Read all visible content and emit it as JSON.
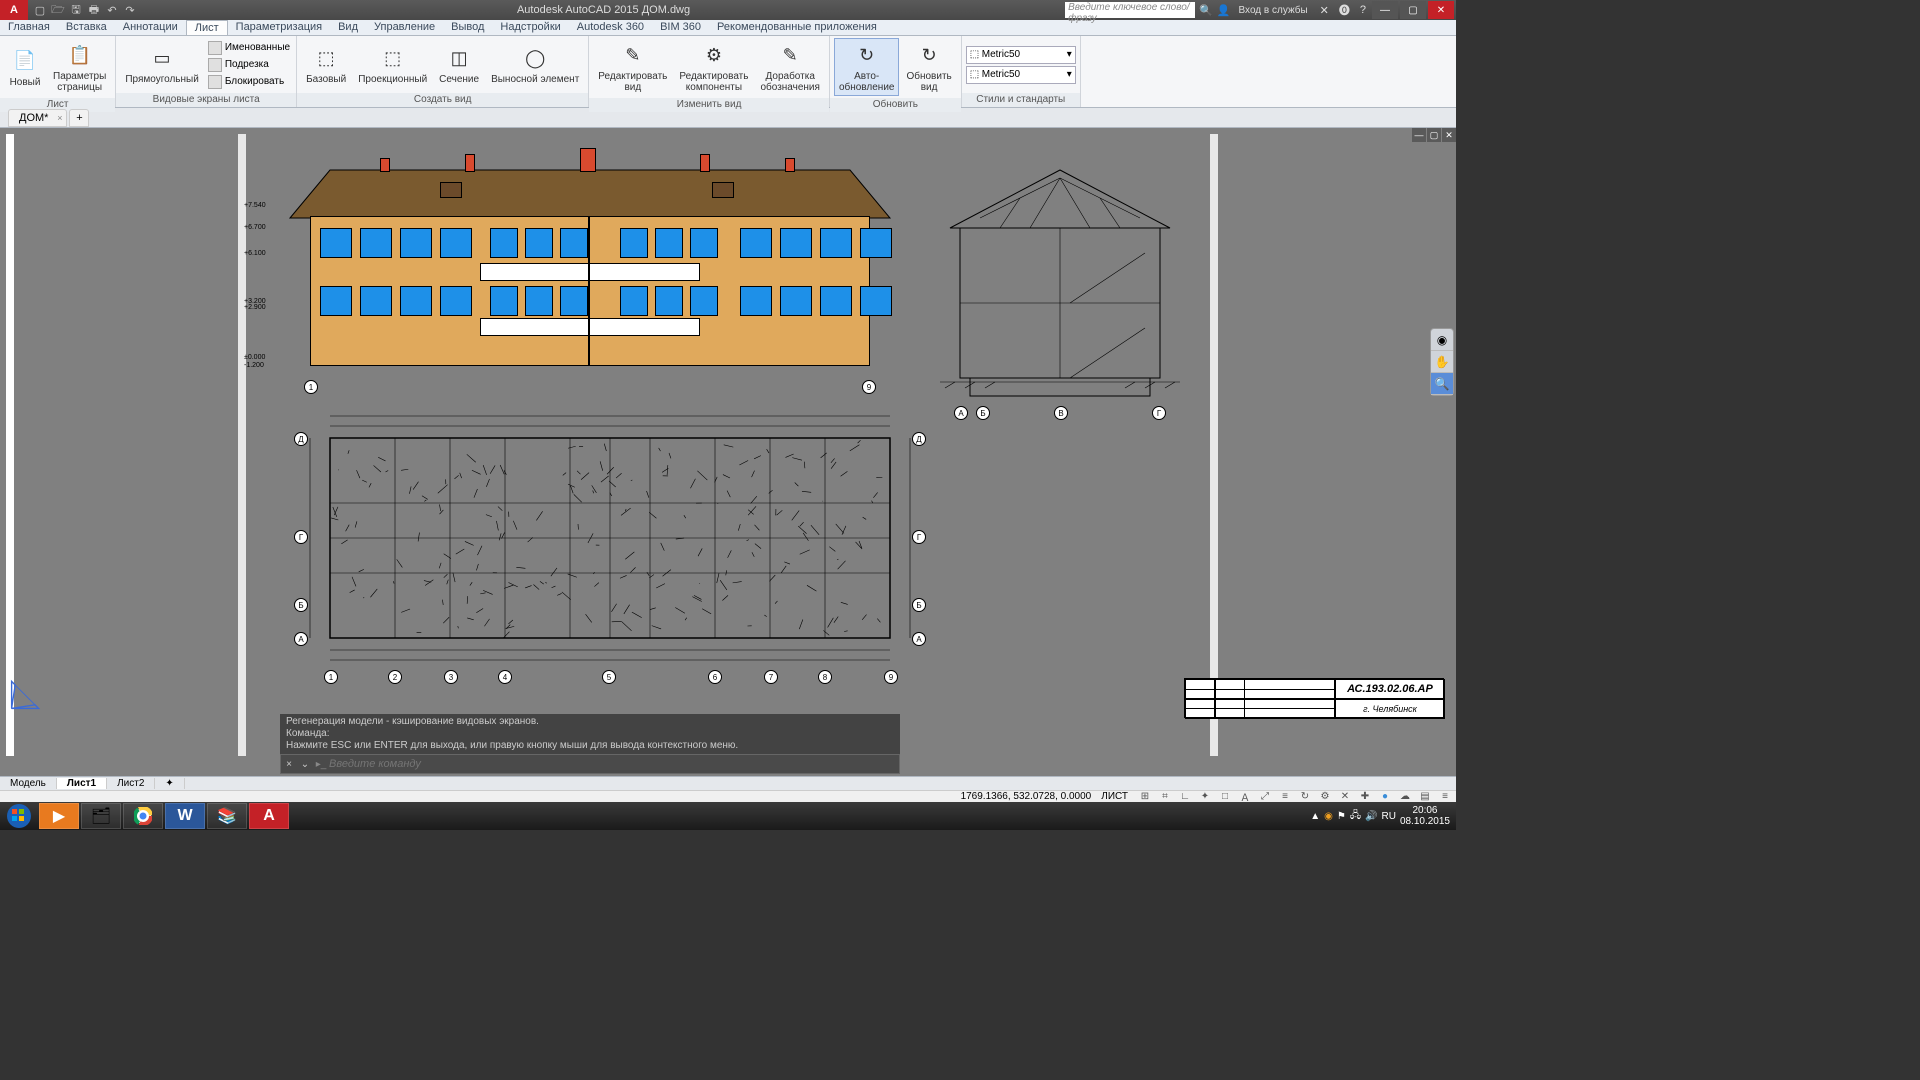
{
  "app": {
    "title": "Autodesk AutoCAD 2015   ДОМ.dwg",
    "search_placeholder": "Введите ключевое слово/фразу",
    "login": "Вход в службы"
  },
  "qat": [
    "📄",
    "🗁",
    "🗎",
    "🖶",
    "↶",
    "↷"
  ],
  "menus": [
    "Главная",
    "Вставка",
    "Аннотации",
    "Лист",
    "Параметризация",
    "Вид",
    "Управление",
    "Вывод",
    "Надстройки",
    "Autodesk 360",
    "BIM 360",
    "Рекомендованные приложения"
  ],
  "menu_active": 3,
  "ribbon_groups": [
    {
      "label": "Лист",
      "buttons": [
        {
          "t": "Новый",
          "i": "📄"
        },
        {
          "t": "Параметры\nстраницы",
          "i": "📋"
        }
      ]
    },
    {
      "label": "Видовые экраны листа",
      "buttons": [
        {
          "t": "Прямоугольный",
          "i": "▭"
        }
      ],
      "small": [
        "Именованные",
        "Подрезка",
        "Блокировать"
      ]
    },
    {
      "label": "Создать вид",
      "buttons": [
        {
          "t": "Базовый",
          "i": "⬚"
        },
        {
          "t": "Проекционный",
          "i": "⬚"
        },
        {
          "t": "Сечение",
          "i": "◫"
        },
        {
          "t": "Выносной элемент",
          "i": "◯"
        }
      ]
    },
    {
      "label": "Изменить вид",
      "buttons": [
        {
          "t": "Редактировать\nвид",
          "i": "✎"
        },
        {
          "t": "Редактировать\nкомпоненты",
          "i": "⚙"
        },
        {
          "t": "Доработка\nобозначения",
          "i": "✎"
        }
      ]
    },
    {
      "label": "Обновить",
      "buttons": [
        {
          "t": "Авто-\nобновление",
          "i": "↻",
          "active": true
        },
        {
          "t": "Обновить\nвид",
          "i": "↻"
        }
      ]
    },
    {
      "label": "Стили и стандарты",
      "combos": [
        "Metric50",
        "Metric50"
      ]
    }
  ],
  "filetab": "ДОМ*",
  "axis_bottom": [
    "1",
    "9"
  ],
  "axis_plan": [
    "1",
    "2",
    "3",
    "4",
    "5",
    "6",
    "7",
    "8",
    "9"
  ],
  "axis_side": [
    "А",
    "Б",
    "В",
    "Г"
  ],
  "elev_lvl": [
    "-1.200",
    "±0.000",
    "+2.900",
    "+3.200",
    "+6.100",
    "+6.700",
    "+7.540"
  ],
  "cmd_hist": [
    "Регенерация модели - кэширование видовых экранов.",
    "Команда:",
    "Нажмите ESC или ENTER для выхода, или правую кнопку мыши для вывода контекстного меню."
  ],
  "cmd_placeholder": "Введите команду",
  "titleblock_code": "АС.193.02.06.АР",
  "titleblock_city": "г. Челябинск",
  "btabs": [
    "Модель",
    "Лист1",
    "Лист2"
  ],
  "btab_active": 1,
  "coords": "1769.1366, 532.0728, 0.0000",
  "space": "ЛИСТ",
  "clock_time": "20:06",
  "clock_date": "08.10.2015",
  "colors": {
    "wall": "#e0a95c",
    "roof": "#7a5a2f",
    "window": "#1e90e8",
    "chimney": "#d84a2f",
    "paper": "#ffffff",
    "model": "#808080"
  }
}
